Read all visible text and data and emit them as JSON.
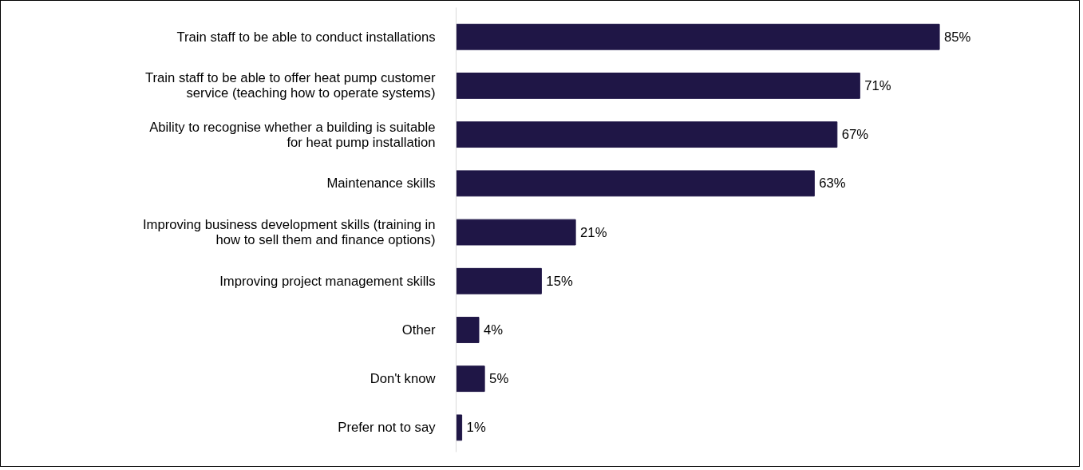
{
  "chart_data": {
    "type": "bar",
    "orientation": "horizontal",
    "categories": [
      "Train staff to be able to conduct installations",
      "Train staff to be able to offer heat pump customer\nservice (teaching how to operate systems)",
      "Ability to recognise whether a building is suitable\nfor heat pump installation",
      "Maintenance skills",
      "Improving business development skills (training in\nhow to sell them and finance options)",
      "Improving project management skills",
      "Other",
      "Don't know",
      "Prefer not to say"
    ],
    "values": [
      85,
      71,
      67,
      63,
      21,
      15,
      4,
      5,
      1
    ],
    "color": "#1f1646",
    "value_labels": [
      "85%",
      "71%",
      "67%",
      "63%",
      "21%",
      "15%",
      "4%",
      "5%",
      "1%"
    ],
    "tick_labels": "y",
    "grid": false
  }
}
